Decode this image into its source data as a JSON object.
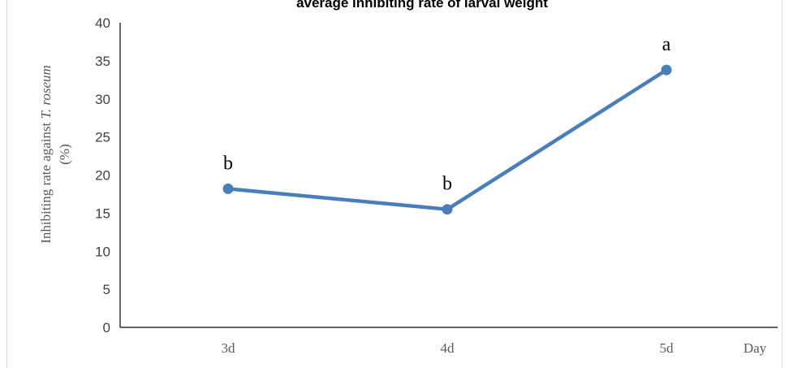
{
  "chart_data": {
    "type": "line",
    "title": "average inhibiting rate of larval weight",
    "xlabel": "Day",
    "ylabel": "Inhibiting rate against ",
    "ylabel_species": "T. roseum",
    "ylabel_unit": "(%)",
    "categories": [
      "3d",
      "4d",
      "5d"
    ],
    "series": [
      {
        "values": [
          18.2,
          15.5,
          33.8
        ],
        "color": "#4a7ebb"
      }
    ],
    "annotations": [
      "b",
      "b",
      "a"
    ],
    "ylim": [
      0,
      40
    ],
    "yticks": [
      0,
      5,
      10,
      15,
      20,
      25,
      30,
      35,
      40
    ],
    "grid": false,
    "legend": "none"
  }
}
